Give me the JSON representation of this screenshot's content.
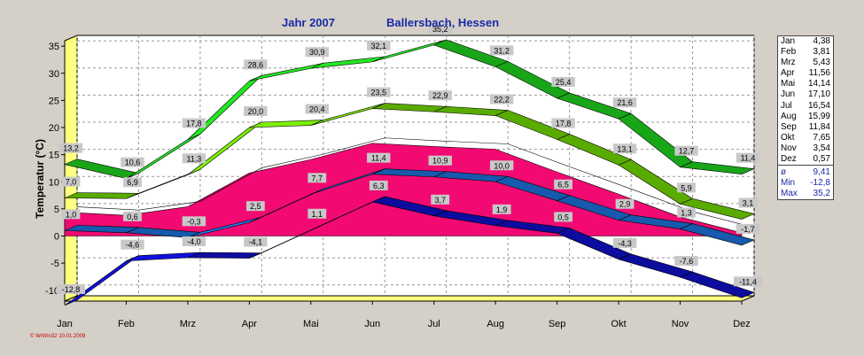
{
  "titles": {
    "left": "Jahr  2007",
    "right": "Ballersbach, Hessen"
  },
  "credit": "© WrWin32  10.01.2009",
  "legend": {
    "months": [
      {
        "label": "Jan",
        "value": "4,38"
      },
      {
        "label": "Feb",
        "value": "3,81"
      },
      {
        "label": "Mrz",
        "value": "5,43"
      },
      {
        "label": "Apr",
        "value": "11,56"
      },
      {
        "label": "Mai",
        "value": "14,14"
      },
      {
        "label": "Jun",
        "value": "17,10"
      },
      {
        "label": "Jul",
        "value": "16,54"
      },
      {
        "label": "Aug",
        "value": "15,99"
      },
      {
        "label": "Sep",
        "value": "11,84"
      },
      {
        "label": "Okt",
        "value": "7,65"
      },
      {
        "label": "Nov",
        "value": "3,54"
      },
      {
        "label": "Dez",
        "value": "0,57"
      }
    ],
    "stats": [
      {
        "label": "ø",
        "value": "9,41"
      },
      {
        "label": "Min",
        "value": "-12,8"
      },
      {
        "label": "Max",
        "value": "35,2"
      }
    ]
  },
  "chart_data": {
    "type": "area",
    "xlabel": "",
    "ylabel": "Temperatur  (°C)",
    "categories": [
      "Jan",
      "Feb",
      "Mrz",
      "Apr",
      "Mai",
      "Jun",
      "Jul",
      "Aug",
      "Sep",
      "Okt",
      "Nov",
      "Dez"
    ],
    "ylim": [
      -12,
      36
    ],
    "yticks": [
      35,
      30,
      25,
      20,
      15,
      10,
      5,
      0,
      -5,
      -10
    ],
    "grid": true,
    "series": [
      {
        "color": "#22e722",
        "values": [
          13.2,
          10.6,
          17.8,
          28.6,
          30.9,
          32.1,
          35.2,
          31.2,
          25.4,
          21.6,
          12.7,
          11.4
        ],
        "labels": [
          "13,2",
          "10,6",
          "17,8",
          "28,6",
          "30,9",
          "32,1",
          "35,2",
          "31,2",
          "25,4",
          "21,6",
          "12,7",
          "11,4"
        ]
      },
      {
        "color": "#7cee00",
        "values": [
          7.0,
          6.9,
          11.3,
          20.0,
          20.4,
          23.5,
          22.9,
          22.2,
          17.8,
          13.1,
          5.9,
          3.1
        ],
        "labels": [
          "7,0",
          "6,9",
          "11,3",
          "20,0",
          "20,4",
          "23,5",
          "22,9",
          "22,2",
          "17,8",
          "13,1",
          "5,9",
          "3,1"
        ]
      },
      {
        "color": "#ff0a78",
        "values": [
          4.4,
          3.8,
          5.4,
          11.6,
          14.1,
          17.1,
          16.5,
          16.0,
          11.8,
          7.7,
          3.5,
          0.6
        ]
      },
      {
        "color": "#1f7cf0",
        "values": [
          1.0,
          0.6,
          -0.3,
          2.5,
          7.7,
          11.4,
          10.9,
          10.0,
          6.5,
          2.9,
          1.3,
          -1.7
        ],
        "labels": [
          "1,0",
          "0,6",
          "-0,3",
          "2,5",
          "7,7",
          "11,4",
          "10,9",
          "10,0",
          "6,5",
          "2,9",
          "1,3",
          "-1,7"
        ]
      },
      {
        "color": "#1010dd",
        "values": [
          -12.8,
          -4.6,
          -4.0,
          -4.1,
          1.1,
          6.3,
          3.7,
          1.9,
          0.5,
          -4.3,
          -7.6,
          -11.4
        ],
        "labels": [
          "-12,8",
          "-4,6",
          "-4,0",
          "-4,1",
          "1,1",
          "6,3",
          "3,7",
          "1,9",
          "0,5",
          "-4,3",
          "-7,6",
          "-11,4"
        ]
      }
    ]
  }
}
